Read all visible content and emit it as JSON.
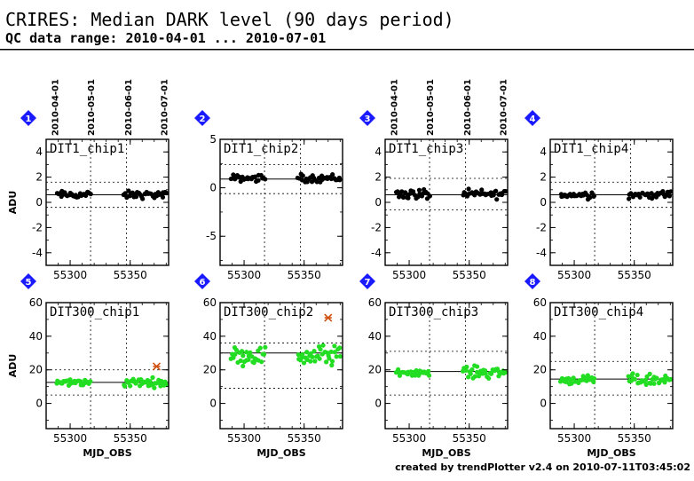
{
  "header": {
    "title": "CRIRES: Median DARK level (90 days period)",
    "subtitle": "QC data range: 2010-04-01 ... 2010-07-01"
  },
  "footer": {
    "credit": "created by trendPlotter v2.4 on 2010-07-11T03:45:02"
  },
  "colors": {
    "badge": "#1a1aff",
    "points_row1": "#000000",
    "points_row2": "#22dd22",
    "outlier": "#d05010"
  },
  "chart_data": [
    {
      "type": "scatter",
      "badge": "1",
      "label": "DIT1_chip1",
      "ylabel": "ADU",
      "xlabel": "",
      "ylim": [
        -5,
        5
      ],
      "yticks": [
        -4,
        -2,
        0,
        2,
        4
      ],
      "xlim": [
        55280,
        55382
      ],
      "xticks": [
        55300,
        55350
      ],
      "date_ticks": [
        "2010-04-01",
        "2010-05-01",
        "2010-06-01",
        "2010-07-01"
      ],
      "median": 0.6,
      "band": [
        -0.4,
        1.6
      ],
      "clusters": [
        {
          "x": [
            55289,
            55317
          ],
          "y": [
            0.6,
            0.25
          ],
          "n": 26
        },
        {
          "x": [
            55345,
            55380
          ],
          "y": [
            0.6,
            0.25
          ],
          "n": 32
        }
      ],
      "outliers": []
    },
    {
      "type": "scatter",
      "badge": "2",
      "label": "DIT1_chip2",
      "ylabel": "",
      "xlabel": "",
      "ylim": [
        -8,
        5
      ],
      "yticks": [
        -5,
        0,
        5
      ],
      "xlim": [
        55280,
        55382
      ],
      "xticks": [
        55300,
        55350
      ],
      "date_ticks": [],
      "median": 0.9,
      "band": [
        -0.6,
        2.4
      ],
      "clusters": [
        {
          "x": [
            55289,
            55317
          ],
          "y": [
            1.0,
            0.3
          ],
          "n": 26
        },
        {
          "x": [
            55345,
            55380
          ],
          "y": [
            1.0,
            0.35
          ],
          "n": 32
        }
      ],
      "outliers": []
    },
    {
      "type": "scatter",
      "badge": "3",
      "label": "DIT1_chip3",
      "ylabel": "",
      "xlabel": "",
      "ylim": [
        -5,
        5
      ],
      "yticks": [
        -4,
        -2,
        0,
        2,
        4
      ],
      "xlim": [
        55280,
        55382
      ],
      "xticks": [
        55300,
        55350
      ],
      "date_ticks": [
        "2010-04-01",
        "2010-05-01",
        "2010-06-01",
        "2010-07-01"
      ],
      "median": 0.6,
      "band": [
        -0.6,
        1.9
      ],
      "clusters": [
        {
          "x": [
            55289,
            55317
          ],
          "y": [
            0.65,
            0.35
          ],
          "n": 26
        },
        {
          "x": [
            55345,
            55380
          ],
          "y": [
            0.65,
            0.3
          ],
          "n": 32
        }
      ],
      "outliers": []
    },
    {
      "type": "scatter",
      "badge": "4",
      "label": "DIT1_chip4",
      "ylabel": "",
      "xlabel": "",
      "ylim": [
        -5,
        5
      ],
      "yticks": [
        -4,
        -2,
        0,
        2,
        4
      ],
      "xlim": [
        55280,
        55382
      ],
      "xticks": [
        55300,
        55350
      ],
      "date_ticks": [],
      "median": 0.6,
      "band": [
        -0.4,
        1.6
      ],
      "clusters": [
        {
          "x": [
            55289,
            55317
          ],
          "y": [
            0.6,
            0.25
          ],
          "n": 26
        },
        {
          "x": [
            55345,
            55380
          ],
          "y": [
            0.6,
            0.25
          ],
          "n": 32
        }
      ],
      "outliers": []
    },
    {
      "type": "scatter",
      "badge": "5",
      "label": "DIT300_chip1",
      "ylabel": "ADU",
      "xlabel": "MJD_OBS",
      "ylim": [
        -15,
        60
      ],
      "yticks": [
        0,
        20,
        40,
        60
      ],
      "xlim": [
        55280,
        55382
      ],
      "xticks": [
        55300,
        55350
      ],
      "date_ticks": [],
      "median": 12.5,
      "band": [
        5,
        20
      ],
      "clusters": [
        {
          "x": [
            55289,
            55317
          ],
          "y": [
            12.5,
            1.8
          ],
          "n": 30
        },
        {
          "x": [
            55345,
            55380
          ],
          "y": [
            12.5,
            2.2
          ],
          "n": 36
        }
      ],
      "outliers": [
        {
          "x": 55372,
          "y": 22
        }
      ]
    },
    {
      "type": "scatter",
      "badge": "6",
      "label": "DIT300_chip2",
      "ylabel": "",
      "xlabel": "MJD_OBS",
      "ylim": [
        -15,
        60
      ],
      "yticks": [
        0,
        20,
        40,
        60
      ],
      "xlim": [
        55280,
        55382
      ],
      "xticks": [
        55300,
        55350
      ],
      "date_ticks": [],
      "median": 30,
      "band": [
        9,
        36
      ],
      "clusters": [
        {
          "x": [
            55289,
            55317
          ],
          "y": [
            28.5,
            4.5
          ],
          "n": 30
        },
        {
          "x": [
            55345,
            55380
          ],
          "y": [
            28.5,
            5.5
          ],
          "n": 36
        }
      ],
      "outliers": [
        {
          "x": 55370,
          "y": 51
        }
      ]
    },
    {
      "type": "scatter",
      "badge": "7",
      "label": "DIT300_chip3",
      "ylabel": "",
      "xlabel": "MJD_OBS",
      "ylim": [
        -15,
        60
      ],
      "yticks": [
        0,
        20,
        40,
        60
      ],
      "xlim": [
        55280,
        55382
      ],
      "xticks": [
        55300,
        55350
      ],
      "date_ticks": [],
      "median": 19,
      "band": [
        5,
        31
      ],
      "clusters": [
        {
          "x": [
            55289,
            55317
          ],
          "y": [
            18.5,
            1.5
          ],
          "n": 30
        },
        {
          "x": [
            55345,
            55380
          ],
          "y": [
            18.5,
            3.0
          ],
          "n": 36
        }
      ],
      "outliers": []
    },
    {
      "type": "scatter",
      "badge": "8",
      "label": "DIT300_chip4",
      "ylabel": "",
      "xlabel": "MJD_OBS",
      "ylim": [
        -15,
        60
      ],
      "yticks": [
        0,
        20,
        40,
        60
      ],
      "xlim": [
        55280,
        55382
      ],
      "xticks": [
        55300,
        55350
      ],
      "date_ticks": [],
      "median": 14.5,
      "band": [
        5,
        25
      ],
      "clusters": [
        {
          "x": [
            55289,
            55317
          ],
          "y": [
            14,
            2.0
          ],
          "n": 30
        },
        {
          "x": [
            55345,
            55380
          ],
          "y": [
            14,
            3.0
          ],
          "n": 36
        }
      ],
      "outliers": []
    }
  ]
}
